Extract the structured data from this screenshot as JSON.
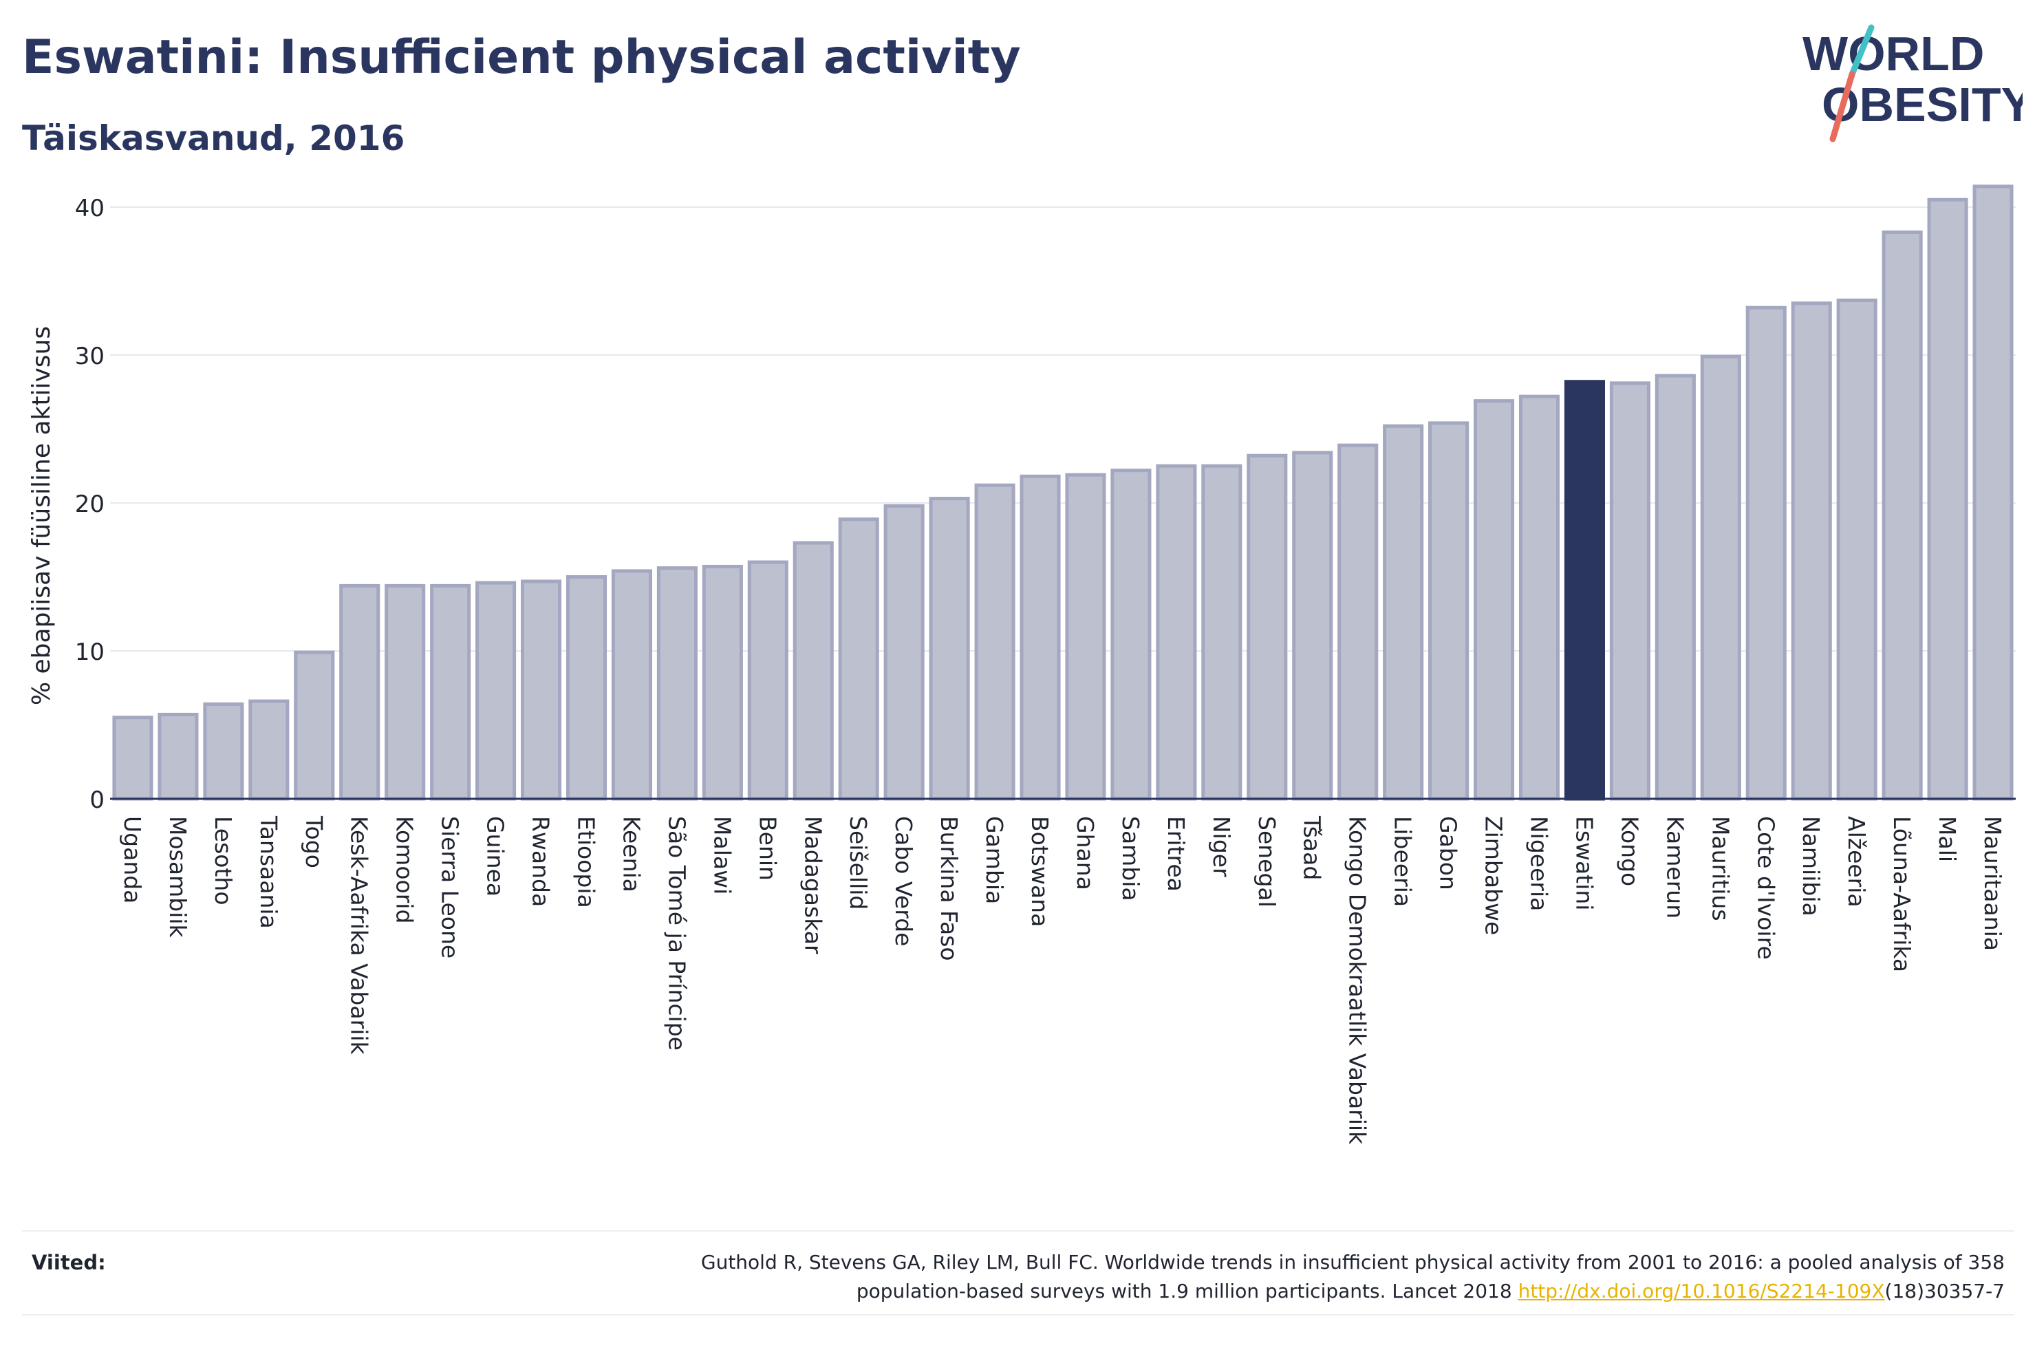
{
  "header": {
    "title": "Eswatini: Insufficient physical activity",
    "subtitle": "Täiskasvanud, 2016"
  },
  "logo": {
    "line1": "WORLD",
    "line2": "OBESITY",
    "slash_colors": [
      "#43c1c6",
      "#e76c5e"
    ],
    "text_color": "#2b3660"
  },
  "footer": {
    "label": "Viited:",
    "reference_line1": "Guthold R, Stevens GA, Riley LM, Bull FC. Worldwide trends in insufficient physical activity from 2001 to 2016: a pooled analysis of 358",
    "reference_line2_prefix": "population-based surveys with 1.9 million participants. Lancet 2018",
    "reference_link": "http://dx.doi.org/10.1016/S2214-109X",
    "reference_line2_suffix": "(18)30357-7"
  },
  "colors": {
    "bar_fill": "#bcc0cf",
    "bar_stroke": "#a3a8c0",
    "highlight": "#2b3660",
    "grid": "#e6e8ee",
    "axis": "#2b3660",
    "link": "#e8b300"
  },
  "chart_data": {
    "type": "bar",
    "ylabel": "% ebapiisav füüsiline aktiivsus",
    "xlabel": "",
    "ylim": [
      0,
      42
    ],
    "yticks": [
      0,
      10,
      20,
      30,
      40
    ],
    "grid": true,
    "highlight": "Eswatini",
    "categories": [
      "Uganda",
      "Mosambiik",
      "Lesotho",
      "Tansaania",
      "Togo",
      "Kesk-Aafrika Vabariik",
      "Komoorid",
      "Sierra Leone",
      "Guinea",
      "Rwanda",
      "Etioopia",
      "Keenia",
      "São Tomé ja Príncipe",
      "Malawi",
      "Benin",
      "Madagaskar",
      "Seišellid",
      "Cabo Verde",
      "Burkina Faso",
      "Gambia",
      "Botswana",
      "Ghana",
      "Sambia",
      "Eritrea",
      "Niger",
      "Senegal",
      "Tšaad",
      "Kongo Demokraatlik Vabariik",
      "Libeeria",
      "Gabon",
      "Zimbabwe",
      "Nigeeria",
      "Eswatini",
      "Kongo",
      "Kamerun",
      "Mauritius",
      "Cote d'Ivoire",
      "Namiibia",
      "Alžeeria",
      "Lõuna-Aafrika",
      "Mali",
      "Mauritaania"
    ],
    "values": [
      5.5,
      5.7,
      6.4,
      6.6,
      9.9,
      14.4,
      14.4,
      14.4,
      14.6,
      14.7,
      15.0,
      15.4,
      15.6,
      15.7,
      16.0,
      17.3,
      18.9,
      19.8,
      20.3,
      21.2,
      21.8,
      21.9,
      22.2,
      22.5,
      22.5,
      23.2,
      23.4,
      23.9,
      25.2,
      25.4,
      26.9,
      27.2,
      28.2,
      28.1,
      28.6,
      29.9,
      33.2,
      33.5,
      33.7,
      38.3,
      40.5,
      41.4
    ]
  }
}
